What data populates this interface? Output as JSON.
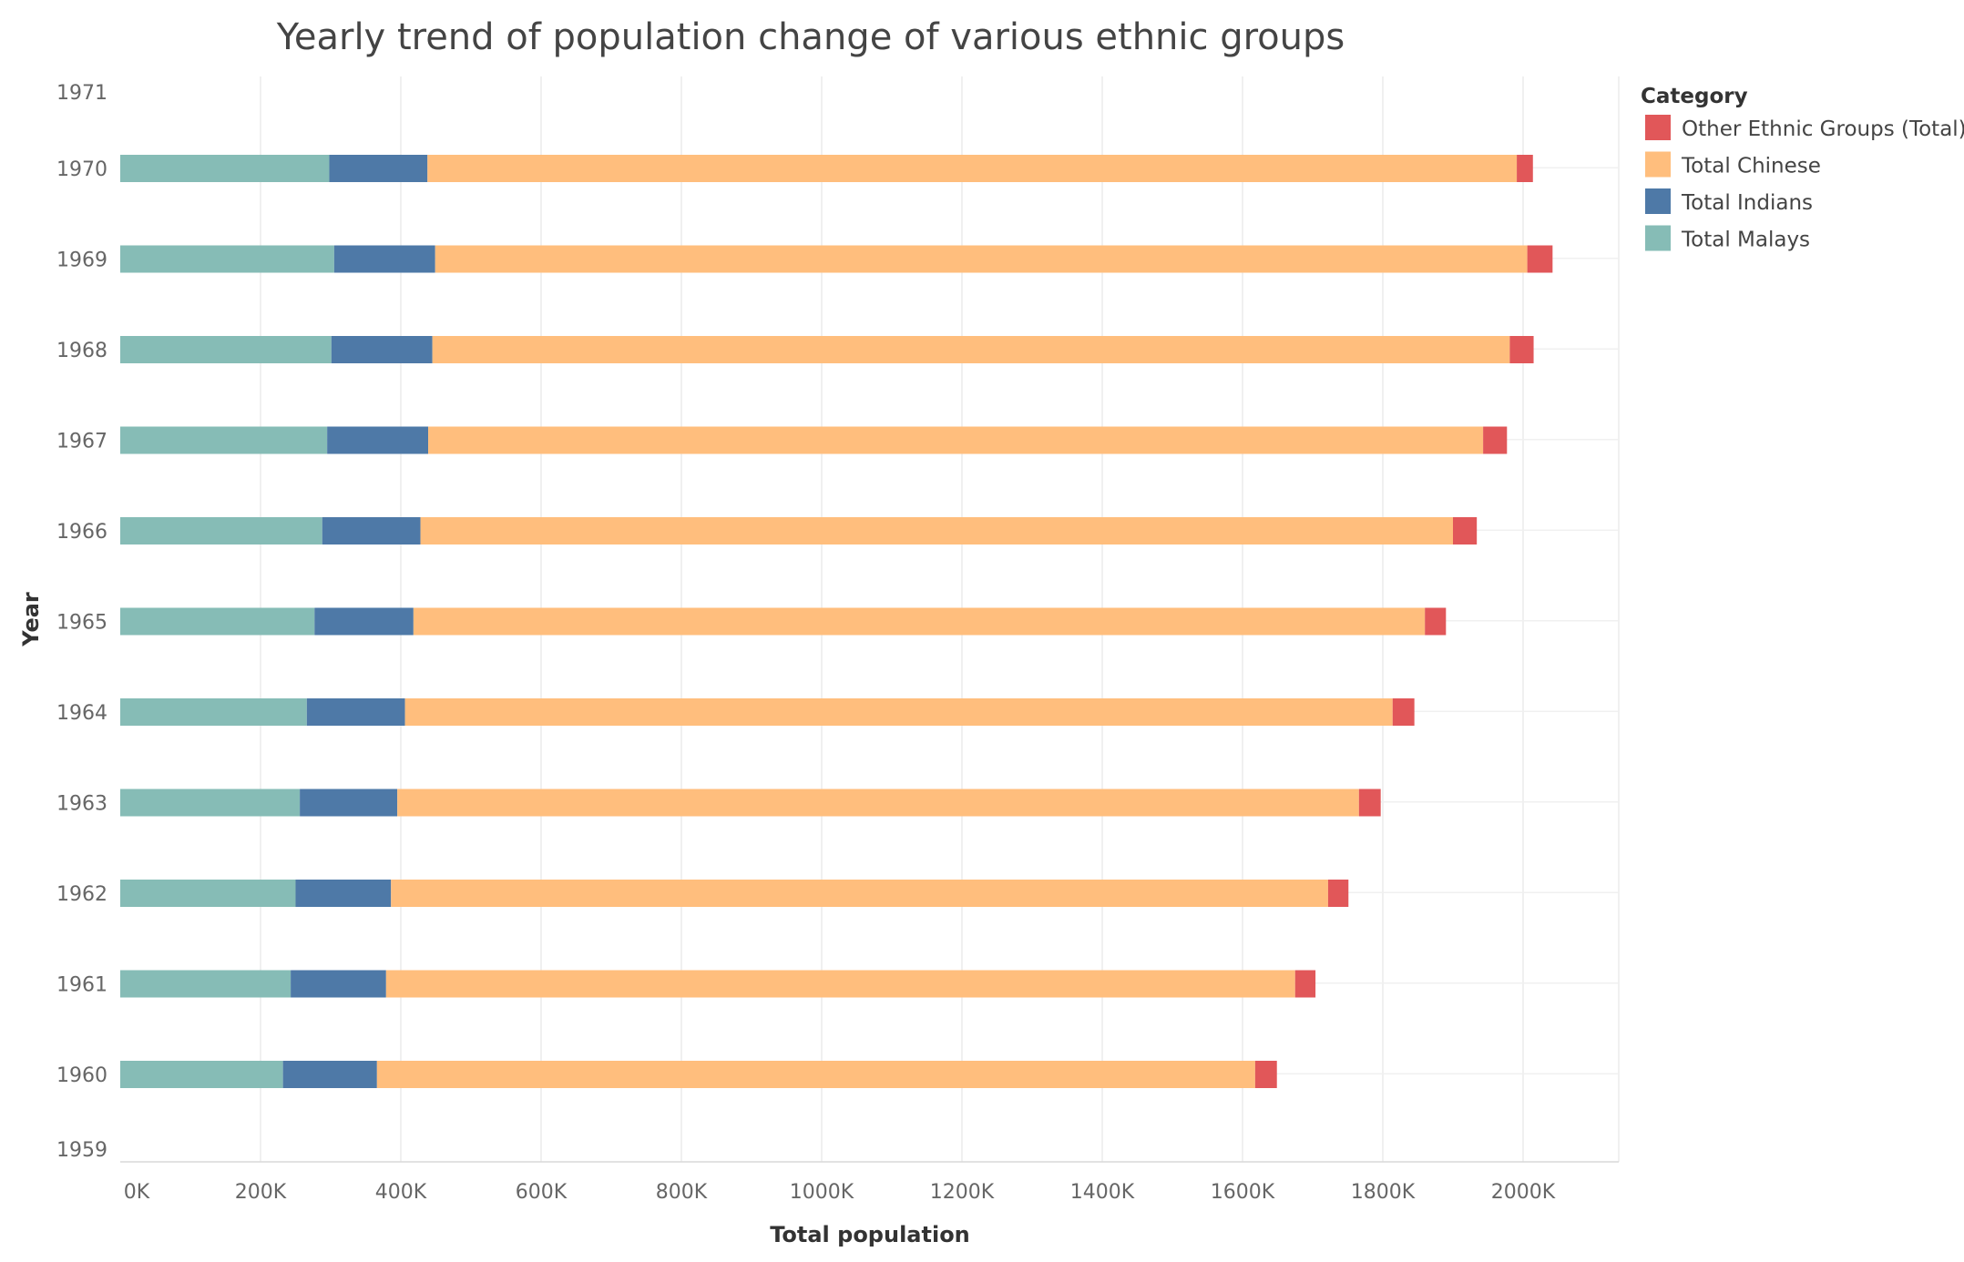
{
  "chart_data": {
    "type": "bar",
    "orientation": "horizontal",
    "stacked": true,
    "title": "Yearly trend of population change of various ethnic groups",
    "xlabel": "Total population",
    "ylabel": "Year",
    "xlim": [
      0,
      2150000
    ],
    "x_ticks": [
      0,
      200000,
      400000,
      600000,
      800000,
      1000000,
      1200000,
      1400000,
      1600000,
      1800000,
      2000000
    ],
    "x_tick_labels": [
      "0K",
      "200K",
      "400K",
      "600K",
      "800K",
      "1000K",
      "1200K",
      "1400K",
      "1600K",
      "1800K",
      "2000K"
    ],
    "y_tick_labels": [
      "1971",
      "1970",
      "1969",
      "1968",
      "1967",
      "1966",
      "1965",
      "1964",
      "1963",
      "1962",
      "1961",
      "1960",
      "1959"
    ],
    "categories": [
      "1970",
      "1969",
      "1968",
      "1967",
      "1966",
      "1965",
      "1964",
      "1963",
      "1962",
      "1961",
      "1960"
    ],
    "series": [
      {
        "name": "Total Malays",
        "color": "#86bcb6",
        "values": [
          298000,
          305000,
          301000,
          295000,
          288000,
          277000,
          266000,
          256000,
          250000,
          243000,
          232000
        ]
      },
      {
        "name": "Total Indians",
        "color": "#4e79a7",
        "values": [
          140000,
          144000,
          144000,
          144000,
          140000,
          141000,
          140000,
          139000,
          136000,
          136000,
          134000
        ]
      },
      {
        "name": "Total Chinese",
        "color": "#ffbe7d",
        "values": [
          1553000,
          1557000,
          1536000,
          1504000,
          1472000,
          1442000,
          1408000,
          1371000,
          1336000,
          1296000,
          1252000
        ]
      },
      {
        "name": "Other Ethnic Groups (Total)",
        "color": "#e15759",
        "values": [
          23000,
          36000,
          34000,
          34000,
          34000,
          30000,
          31000,
          31000,
          29000,
          29000,
          31000
        ]
      }
    ],
    "legend": {
      "title": "Category",
      "position": "right",
      "items": [
        {
          "name": "Other Ethnic Groups (Total)",
          "color": "#e15759"
        },
        {
          "name": "Total Chinese",
          "color": "#ffbe7d"
        },
        {
          "name": "Total Indians",
          "color": "#4e79a7"
        },
        {
          "name": "Total Malays",
          "color": "#86bcb6"
        }
      ]
    },
    "grid": true
  }
}
